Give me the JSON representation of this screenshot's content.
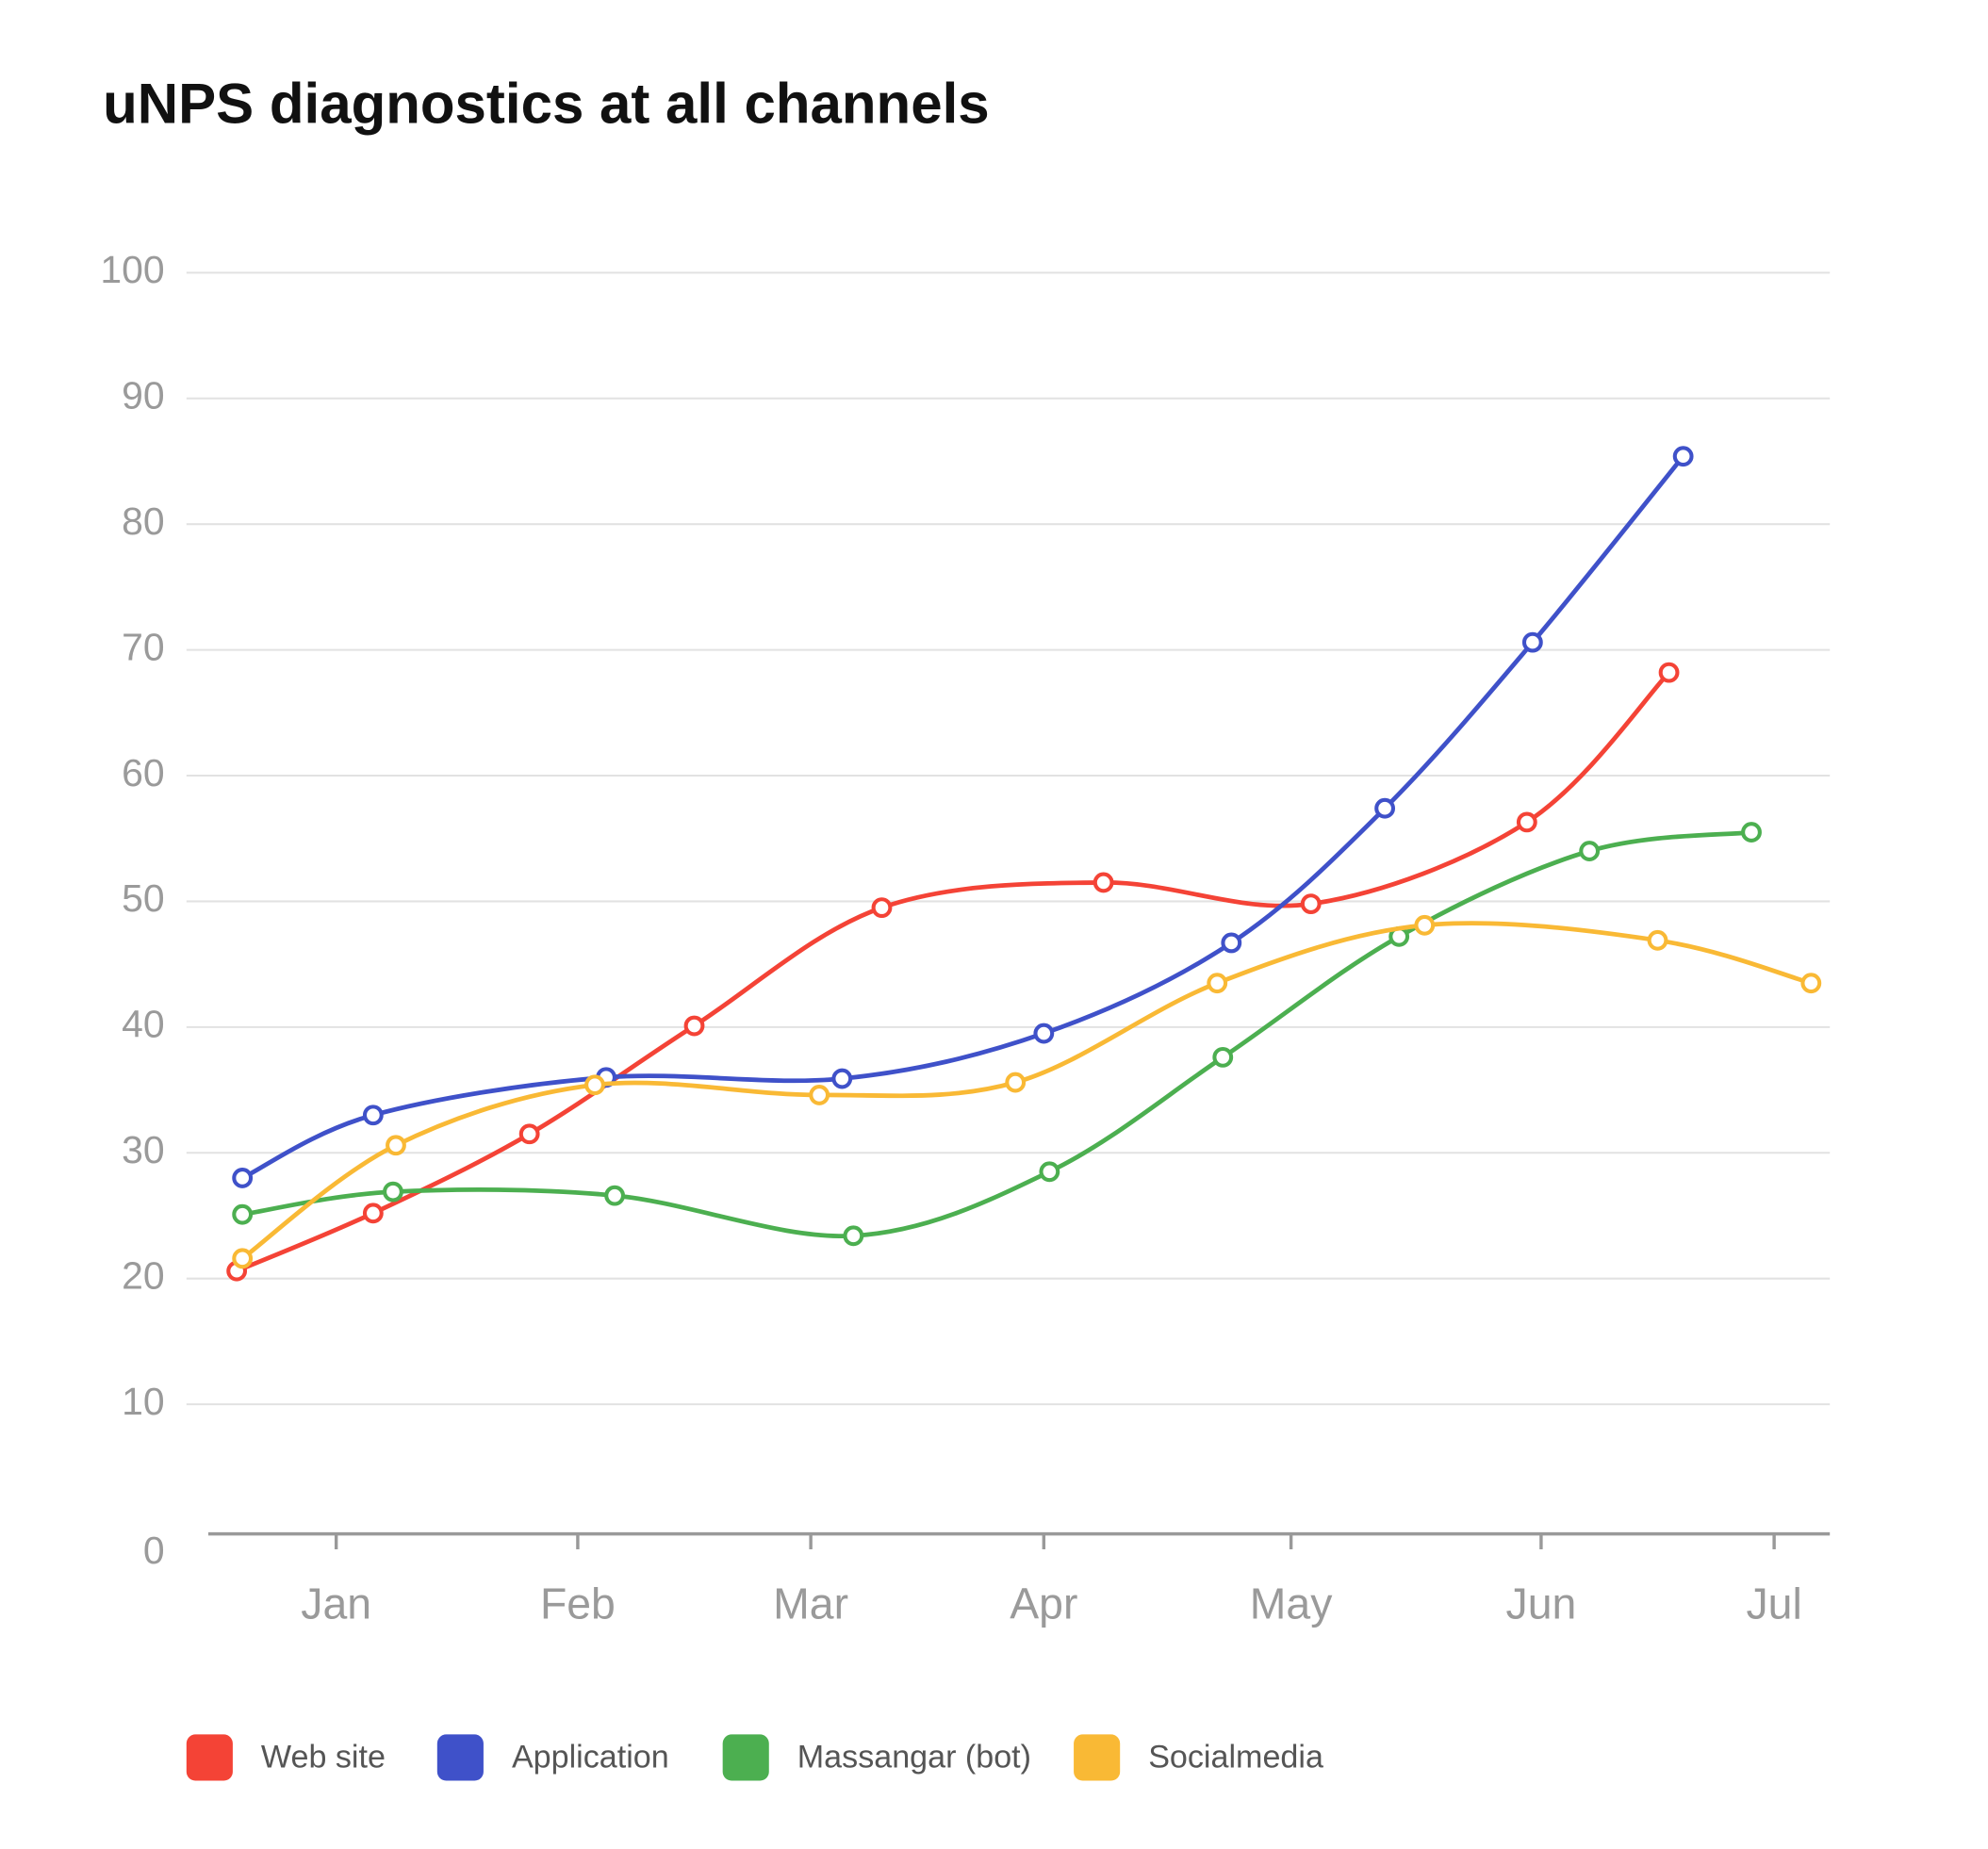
{
  "chart_data": {
    "type": "line",
    "title": "uNPS diagnostics at all channels",
    "xlim": [
      0,
      5.706
    ],
    "xticks": [
      {
        "value": 0.45,
        "label": "Jan"
      },
      {
        "value": 1.3,
        "label": "Feb"
      },
      {
        "value": 2.12,
        "label": "Mar"
      },
      {
        "value": 2.94,
        "label": "Apr"
      },
      {
        "value": 3.81,
        "label": "May"
      },
      {
        "value": 4.69,
        "label": "Jun"
      },
      {
        "value": 5.51,
        "label": "Jul"
      }
    ],
    "ylim": [
      0,
      100
    ],
    "yticks": [
      0,
      10,
      20,
      30,
      40,
      50,
      60,
      70,
      80,
      90,
      100
    ],
    "grid": true,
    "series": [
      {
        "name": "Web site",
        "color": "#f44336",
        "x": [
          0.1,
          0.58,
          1.13,
          1.71,
          2.37,
          3.15,
          3.88,
          4.64,
          5.14
        ],
        "values": [
          20.6,
          25.2,
          31.5,
          40.1,
          49.5,
          51.5,
          49.8,
          56.3,
          68.2
        ]
      },
      {
        "name": "Application",
        "color": "#3f51c9",
        "x": [
          0.12,
          0.58,
          1.4,
          2.23,
          2.94,
          3.6,
          4.14,
          4.66,
          5.19
        ],
        "values": [
          28.0,
          33.0,
          36.0,
          35.9,
          39.5,
          46.7,
          57.4,
          70.6,
          85.4
        ]
      },
      {
        "name": "Massangar (bot)",
        "color": "#4caf50",
        "x": [
          0.12,
          0.65,
          1.43,
          2.27,
          2.96,
          3.57,
          4.19,
          4.86,
          5.43
        ],
        "values": [
          25.1,
          26.9,
          26.6,
          23.4,
          28.5,
          37.6,
          47.2,
          54.0,
          55.5
        ]
      },
      {
        "name": "Socialmedia",
        "color": "#f9b935",
        "x": [
          0.12,
          0.66,
          1.36,
          2.15,
          2.84,
          3.55,
          4.28,
          5.1,
          5.64
        ],
        "values": [
          21.6,
          30.6,
          35.4,
          34.6,
          35.6,
          43.5,
          48.1,
          46.9,
          43.5
        ]
      }
    ]
  }
}
